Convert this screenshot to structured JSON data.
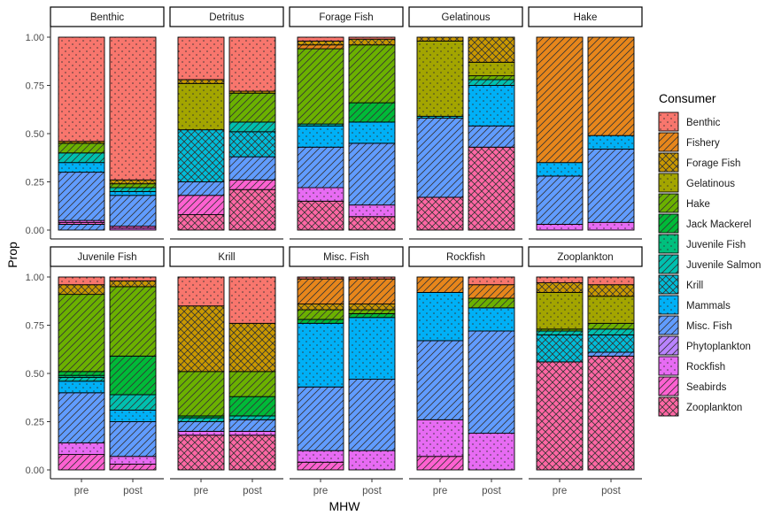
{
  "chart_data": {
    "type": "bar",
    "stacked": true,
    "facet": "consumer-prey",
    "title": "",
    "xlabel": "MHW",
    "ylabel": "Prop",
    "ylim": [
      0,
      1
    ],
    "yticks": [
      "0.00",
      "0.25",
      "0.50",
      "0.75",
      "1.00"
    ],
    "categories": [
      "pre",
      "post"
    ],
    "legend": {
      "title": "Consumer",
      "position": "right",
      "entries": [
        {
          "name": "Benthic",
          "color": "#F8766D",
          "pattern": "dots"
        },
        {
          "name": "Fishery",
          "color": "#E7861B",
          "pattern": "diag"
        },
        {
          "name": "Forage Fish",
          "color": "#C99800",
          "pattern": "cross"
        },
        {
          "name": "Gelatinous",
          "color": "#A3A500",
          "pattern": "dots"
        },
        {
          "name": "Hake",
          "color": "#6BB100",
          "pattern": "diag"
        },
        {
          "name": "Jack Mackerel",
          "color": "#00BA38",
          "pattern": "diag"
        },
        {
          "name": "Juvenile Fish",
          "color": "#00BF7D",
          "pattern": "dots"
        },
        {
          "name": "Juvenile Salmon",
          "color": "#00C0AF",
          "pattern": "diag"
        },
        {
          "name": "Krill",
          "color": "#00BCD8",
          "pattern": "cross"
        },
        {
          "name": "Mammals",
          "color": "#00B0F6",
          "pattern": "dots"
        },
        {
          "name": "Misc. Fish",
          "color": "#619CFF",
          "pattern": "diag"
        },
        {
          "name": "Phytoplankton",
          "color": "#B983FF",
          "pattern": "diag"
        },
        {
          "name": "Rockfish",
          "color": "#E76BF3",
          "pattern": "dots"
        },
        {
          "name": "Seabirds",
          "color": "#FD61D1",
          "pattern": "diag"
        },
        {
          "name": "Zooplankton",
          "color": "#FF67A4",
          "pattern": "cross"
        }
      ]
    },
    "panels": [
      {
        "title": "Benthic",
        "bars": {
          "pre": [
            {
              "prey": "Misc. Fish",
              "value": 0.03
            },
            {
              "prey": "Seabirds",
              "value": 0.01
            },
            {
              "prey": "Rockfish",
              "value": 0.01
            },
            {
              "prey": "Misc. Fish",
              "value": 0.25
            },
            {
              "prey": "Mammals",
              "value": 0.05
            },
            {
              "prey": "Juvenile Salmon",
              "value": 0.05
            },
            {
              "prey": "Hake",
              "value": 0.05
            },
            {
              "prey": "Forage Fish",
              "value": 0.01
            },
            {
              "prey": "Benthic",
              "value": 0.54
            }
          ],
          "post": [
            {
              "prey": "Rockfish",
              "value": 0.01
            },
            {
              "prey": "Seabirds",
              "value": 0.01
            },
            {
              "prey": "Misc. Fish",
              "value": 0.16
            },
            {
              "prey": "Mammals",
              "value": 0.02
            },
            {
              "prey": "Juvenile Salmon",
              "value": 0.02
            },
            {
              "prey": "Hake",
              "value": 0.02
            },
            {
              "prey": "Forage Fish",
              "value": 0.02
            },
            {
              "prey": "Benthic",
              "value": 0.74
            }
          ]
        }
      },
      {
        "title": "Detritus",
        "bars": {
          "pre": [
            {
              "prey": "Zooplankton",
              "value": 0.08
            },
            {
              "prey": "Seabirds",
              "value": 0.1
            },
            {
              "prey": "Misc. Fish",
              "value": 0.07
            },
            {
              "prey": "Krill",
              "value": 0.27
            },
            {
              "prey": "Gelatinous",
              "value": 0.24
            },
            {
              "prey": "Forage Fish",
              "value": 0.02
            },
            {
              "prey": "Benthic",
              "value": 0.22
            }
          ],
          "post": [
            {
              "prey": "Zooplankton",
              "value": 0.21
            },
            {
              "prey": "Seabirds",
              "value": 0.05
            },
            {
              "prey": "Misc. Fish",
              "value": 0.12
            },
            {
              "prey": "Krill",
              "value": 0.13
            },
            {
              "prey": "Juvenile Salmon",
              "value": 0.05
            },
            {
              "prey": "Hake",
              "value": 0.15
            },
            {
              "prey": "Forage Fish",
              "value": 0.01
            },
            {
              "prey": "Benthic",
              "value": 0.28
            }
          ]
        }
      },
      {
        "title": "Forage Fish",
        "bars": {
          "pre": [
            {
              "prey": "Zooplankton",
              "value": 0.15
            },
            {
              "prey": "Rockfish",
              "value": 0.07
            },
            {
              "prey": "Misc. Fish",
              "value": 0.21
            },
            {
              "prey": "Mammals",
              "value": 0.11
            },
            {
              "prey": "Juvenile Salmon",
              "value": 0.01
            },
            {
              "prey": "Hake",
              "value": 0.39
            },
            {
              "prey": "Fishery",
              "value": 0.02
            },
            {
              "prey": "Forage Fish",
              "value": 0.02
            },
            {
              "prey": "Benthic",
              "value": 0.02
            }
          ],
          "post": [
            {
              "prey": "Zooplankton",
              "value": 0.07
            },
            {
              "prey": "Rockfish",
              "value": 0.06
            },
            {
              "prey": "Misc. Fish",
              "value": 0.32
            },
            {
              "prey": "Mammals",
              "value": 0.11
            },
            {
              "prey": "Jack Mackerel",
              "value": 0.1
            },
            {
              "prey": "Hake",
              "value": 0.3
            },
            {
              "prey": "Forage Fish",
              "value": 0.03
            },
            {
              "prey": "Benthic",
              "value": 0.01
            }
          ]
        }
      },
      {
        "title": "Gelatinous",
        "bars": {
          "pre": [
            {
              "prey": "Zooplankton",
              "value": 0.17
            },
            {
              "prey": "Misc. Fish",
              "value": 0.41
            },
            {
              "prey": "Krill",
              "value": 0.01
            },
            {
              "prey": "Gelatinous",
              "value": 0.39
            },
            {
              "prey": "Forage Fish",
              "value": 0.02
            }
          ],
          "post": [
            {
              "prey": "Zooplankton",
              "value": 0.43
            },
            {
              "prey": "Misc. Fish",
              "value": 0.11
            },
            {
              "prey": "Mammals",
              "value": 0.21
            },
            {
              "prey": "Juvenile Salmon",
              "value": 0.03
            },
            {
              "prey": "Hake",
              "value": 0.02
            },
            {
              "prey": "Gelatinous",
              "value": 0.07
            },
            {
              "prey": "Forage Fish",
              "value": 0.13
            }
          ]
        }
      },
      {
        "title": "Hake",
        "bars": {
          "pre": [
            {
              "prey": "Rockfish",
              "value": 0.03
            },
            {
              "prey": "Misc. Fish",
              "value": 0.25
            },
            {
              "prey": "Mammals",
              "value": 0.07
            },
            {
              "prey": "Fishery",
              "value": 0.65
            }
          ],
          "post": [
            {
              "prey": "Rockfish",
              "value": 0.04
            },
            {
              "prey": "Misc. Fish",
              "value": 0.38
            },
            {
              "prey": "Mammals",
              "value": 0.07
            },
            {
              "prey": "Fishery",
              "value": 0.51
            }
          ]
        }
      },
      {
        "title": "Juvenile Fish",
        "bars": {
          "pre": [
            {
              "prey": "Seabirds",
              "value": 0.08
            },
            {
              "prey": "Rockfish",
              "value": 0.06
            },
            {
              "prey": "Misc. Fish",
              "value": 0.26
            },
            {
              "prey": "Mammals",
              "value": 0.06
            },
            {
              "prey": "Juvenile Salmon",
              "value": 0.02
            },
            {
              "prey": "Juvenile Fish",
              "value": 0.01
            },
            {
              "prey": "Jack Mackerel",
              "value": 0.02
            },
            {
              "prey": "Hake",
              "value": 0.4
            },
            {
              "prey": "Forage Fish",
              "value": 0.05
            },
            {
              "prey": "Benthic",
              "value": 0.04
            }
          ],
          "post": [
            {
              "prey": "Seabirds",
              "value": 0.03
            },
            {
              "prey": "Rockfish",
              "value": 0.04
            },
            {
              "prey": "Misc. Fish",
              "value": 0.18
            },
            {
              "prey": "Mammals",
              "value": 0.06
            },
            {
              "prey": "Juvenile Salmon",
              "value": 0.08
            },
            {
              "prey": "Jack Mackerel",
              "value": 0.2
            },
            {
              "prey": "Hake",
              "value": 0.36
            },
            {
              "prey": "Forage Fish",
              "value": 0.03
            },
            {
              "prey": "Benthic",
              "value": 0.02
            }
          ]
        }
      },
      {
        "title": "Krill",
        "bars": {
          "pre": [
            {
              "prey": "Zooplankton",
              "value": 0.18
            },
            {
              "prey": "Rockfish",
              "value": 0.02
            },
            {
              "prey": "Misc. Fish",
              "value": 0.05
            },
            {
              "prey": "Juvenile Salmon",
              "value": 0.02
            },
            {
              "prey": "Jack Mackerel",
              "value": 0.01
            },
            {
              "prey": "Hake",
              "value": 0.23
            },
            {
              "prey": "Forage Fish",
              "value": 0.34
            },
            {
              "prey": "Benthic",
              "value": 0.15
            }
          ],
          "post": [
            {
              "prey": "Zooplankton",
              "value": 0.18
            },
            {
              "prey": "Rockfish",
              "value": 0.02
            },
            {
              "prey": "Misc. Fish",
              "value": 0.06
            },
            {
              "prey": "Juvenile Salmon",
              "value": 0.02
            },
            {
              "prey": "Jack Mackerel",
              "value": 0.1
            },
            {
              "prey": "Hake",
              "value": 0.13
            },
            {
              "prey": "Forage Fish",
              "value": 0.25
            },
            {
              "prey": "Benthic",
              "value": 0.24
            }
          ]
        }
      },
      {
        "title": "Misc. Fish",
        "bars": {
          "pre": [
            {
              "prey": "Seabirds",
              "value": 0.04
            },
            {
              "prey": "Rockfish",
              "value": 0.06
            },
            {
              "prey": "Misc. Fish",
              "value": 0.33
            },
            {
              "prey": "Mammals",
              "value": 0.33
            },
            {
              "prey": "Jack Mackerel",
              "value": 0.02
            },
            {
              "prey": "Hake",
              "value": 0.05
            },
            {
              "prey": "Forage Fish",
              "value": 0.03
            },
            {
              "prey": "Fishery",
              "value": 0.13
            },
            {
              "prey": "Benthic",
              "value": 0.01
            }
          ],
          "post": [
            {
              "prey": "Rockfish",
              "value": 0.1
            },
            {
              "prey": "Misc. Fish",
              "value": 0.37
            },
            {
              "prey": "Mammals",
              "value": 0.32
            },
            {
              "prey": "Jack Mackerel",
              "value": 0.02
            },
            {
              "prey": "Hake",
              "value": 0.02
            },
            {
              "prey": "Forage Fish",
              "value": 0.03
            },
            {
              "prey": "Fishery",
              "value": 0.13
            },
            {
              "prey": "Benthic",
              "value": 0.01
            }
          ]
        }
      },
      {
        "title": "Rockfish",
        "bars": {
          "pre": [
            {
              "prey": "Seabirds",
              "value": 0.07
            },
            {
              "prey": "Rockfish",
              "value": 0.19
            },
            {
              "prey": "Misc. Fish",
              "value": 0.41
            },
            {
              "prey": "Mammals",
              "value": 0.25
            },
            {
              "prey": "Fishery",
              "value": 0.08
            }
          ],
          "post": [
            {
              "prey": "Rockfish",
              "value": 0.19
            },
            {
              "prey": "Misc. Fish",
              "value": 0.53
            },
            {
              "prey": "Mammals",
              "value": 0.12
            },
            {
              "prey": "Hake",
              "value": 0.05
            },
            {
              "prey": "Fishery",
              "value": 0.07
            },
            {
              "prey": "Benthic",
              "value": 0.04
            }
          ]
        }
      },
      {
        "title": "Zooplankton",
        "bars": {
          "pre": [
            {
              "prey": "Zooplankton",
              "value": 0.56
            },
            {
              "prey": "Krill",
              "value": 0.14
            },
            {
              "prey": "Juvenile Salmon",
              "value": 0.02
            },
            {
              "prey": "Hake",
              "value": 0.01
            },
            {
              "prey": "Gelatinous",
              "value": 0.19
            },
            {
              "prey": "Forage Fish",
              "value": 0.05
            },
            {
              "prey": "Benthic",
              "value": 0.03
            }
          ],
          "post": [
            {
              "prey": "Zooplankton",
              "value": 0.59
            },
            {
              "prey": "Misc. Fish",
              "value": 0.02
            },
            {
              "prey": "Krill",
              "value": 0.09
            },
            {
              "prey": "Juvenile Salmon",
              "value": 0.03
            },
            {
              "prey": "Hake",
              "value": 0.03
            },
            {
              "prey": "Gelatinous",
              "value": 0.14
            },
            {
              "prey": "Forage Fish",
              "value": 0.06
            },
            {
              "prey": "Benthic",
              "value": 0.04
            }
          ]
        }
      }
    ]
  }
}
